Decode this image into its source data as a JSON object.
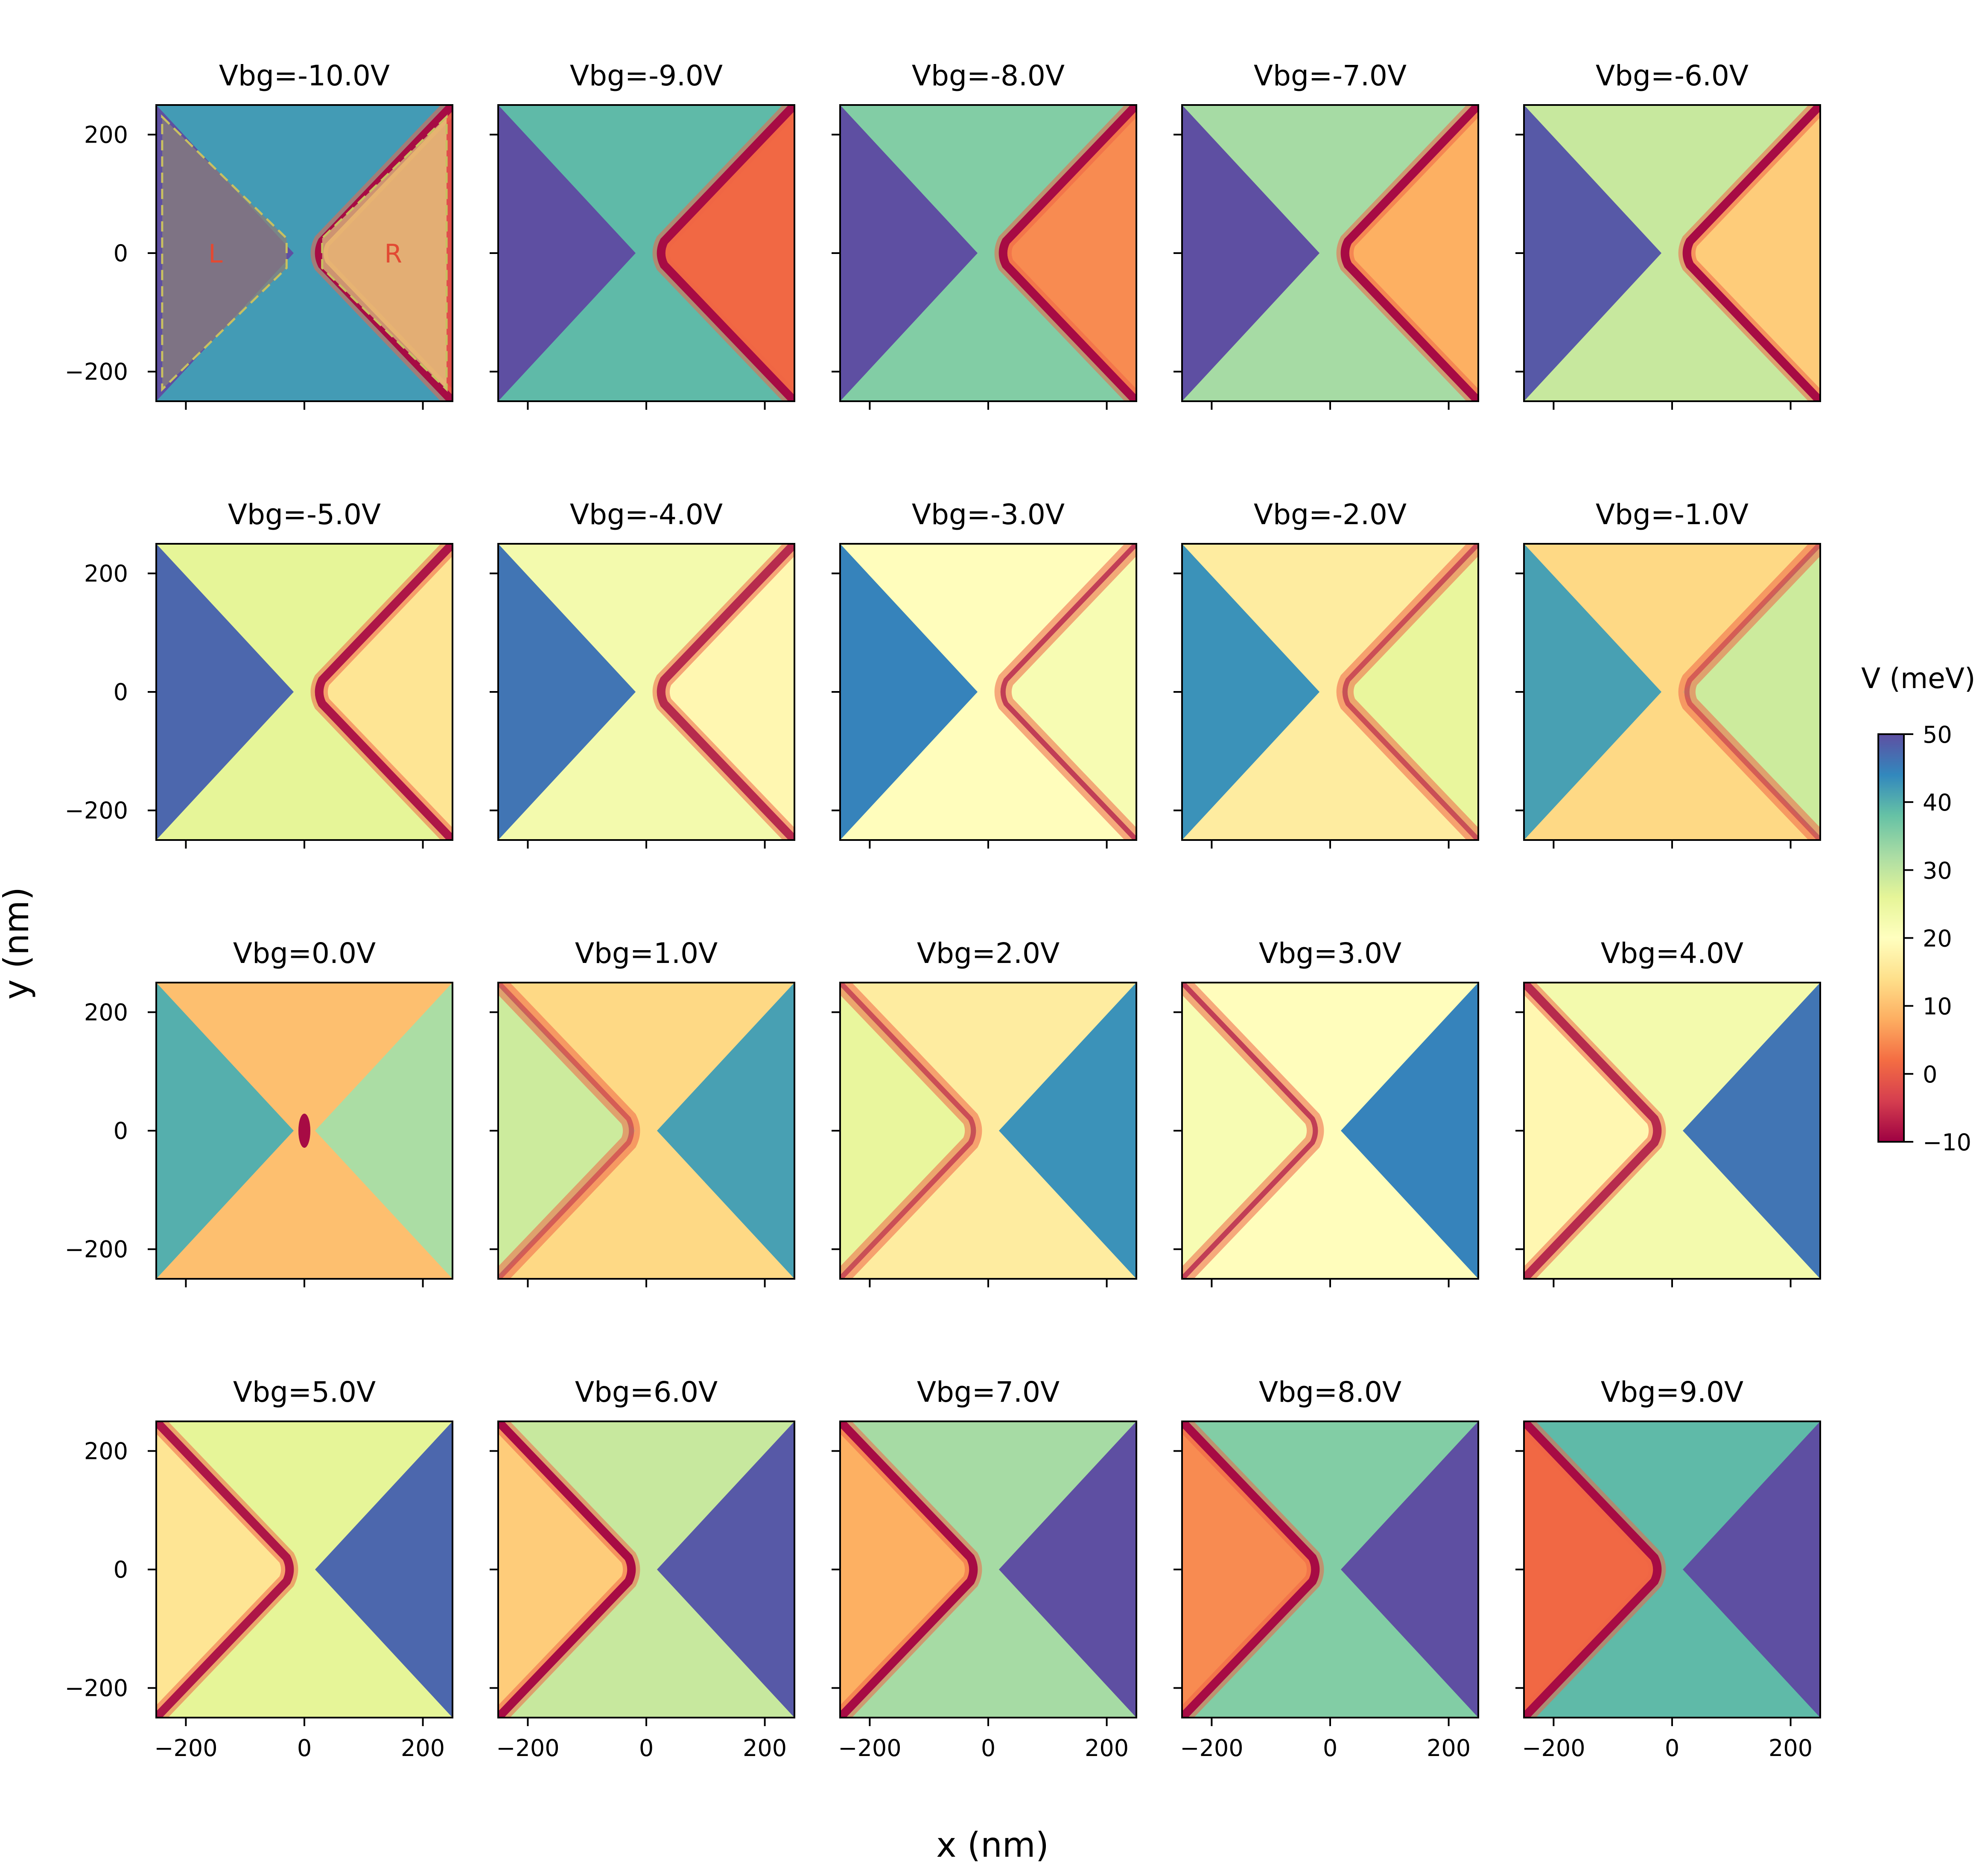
{
  "chart_data": {
    "type": "heatmap",
    "panel_titles": [
      "Vbg=-10.0V",
      "Vbg=-9.0V",
      "Vbg=-8.0V",
      "Vbg=-7.0V",
      "Vbg=-6.0V",
      "Vbg=-5.0V",
      "Vbg=-4.0V",
      "Vbg=-3.0V",
      "Vbg=-2.0V",
      "Vbg=-1.0V",
      "Vbg=0.0V",
      "Vbg=1.0V",
      "Vbg=2.0V",
      "Vbg=3.0V",
      "Vbg=4.0V",
      "Vbg=5.0V",
      "Vbg=6.0V",
      "Vbg=7.0V",
      "Vbg=8.0V",
      "Vbg=9.0V"
    ],
    "vbg_values": [
      -10,
      -9,
      -8,
      -7,
      -6,
      -5,
      -4,
      -3,
      -2,
      -1,
      0,
      1,
      2,
      3,
      4,
      5,
      6,
      7,
      8,
      9
    ],
    "xlabel": "x (nm)",
    "ylabel": "y (nm)",
    "xlim": [
      -250,
      250
    ],
    "ylim": [
      -250,
      250
    ],
    "xticks": [
      -200,
      0,
      200
    ],
    "yticks": [
      200,
      0,
      -200
    ],
    "xtick_labels": [
      "−200",
      "0",
      "200"
    ],
    "ytick_labels": [
      "200",
      "0",
      "−200"
    ],
    "colorbar": {
      "label": "V (meV)",
      "range": [
        -10,
        50
      ],
      "ticks": [
        50,
        40,
        30,
        20,
        10,
        0,
        -10
      ],
      "tick_labels": [
        "50",
        "40",
        "30",
        "20",
        "10",
        "0",
        "−10"
      ],
      "colormap": "Spectral",
      "colors": [
        "#9e0142",
        "#d53e4f",
        "#f46d43",
        "#fdae61",
        "#fee08b",
        "#ffffbf",
        "#e6f598",
        "#abdda4",
        "#66c2a5",
        "#3288bd",
        "#5e4fa2"
      ]
    },
    "annotations": {
      "region_labels": [
        "L",
        "R"
      ],
      "region_label_color": "#e24a33",
      "outline_color": "#c8c060"
    }
  }
}
